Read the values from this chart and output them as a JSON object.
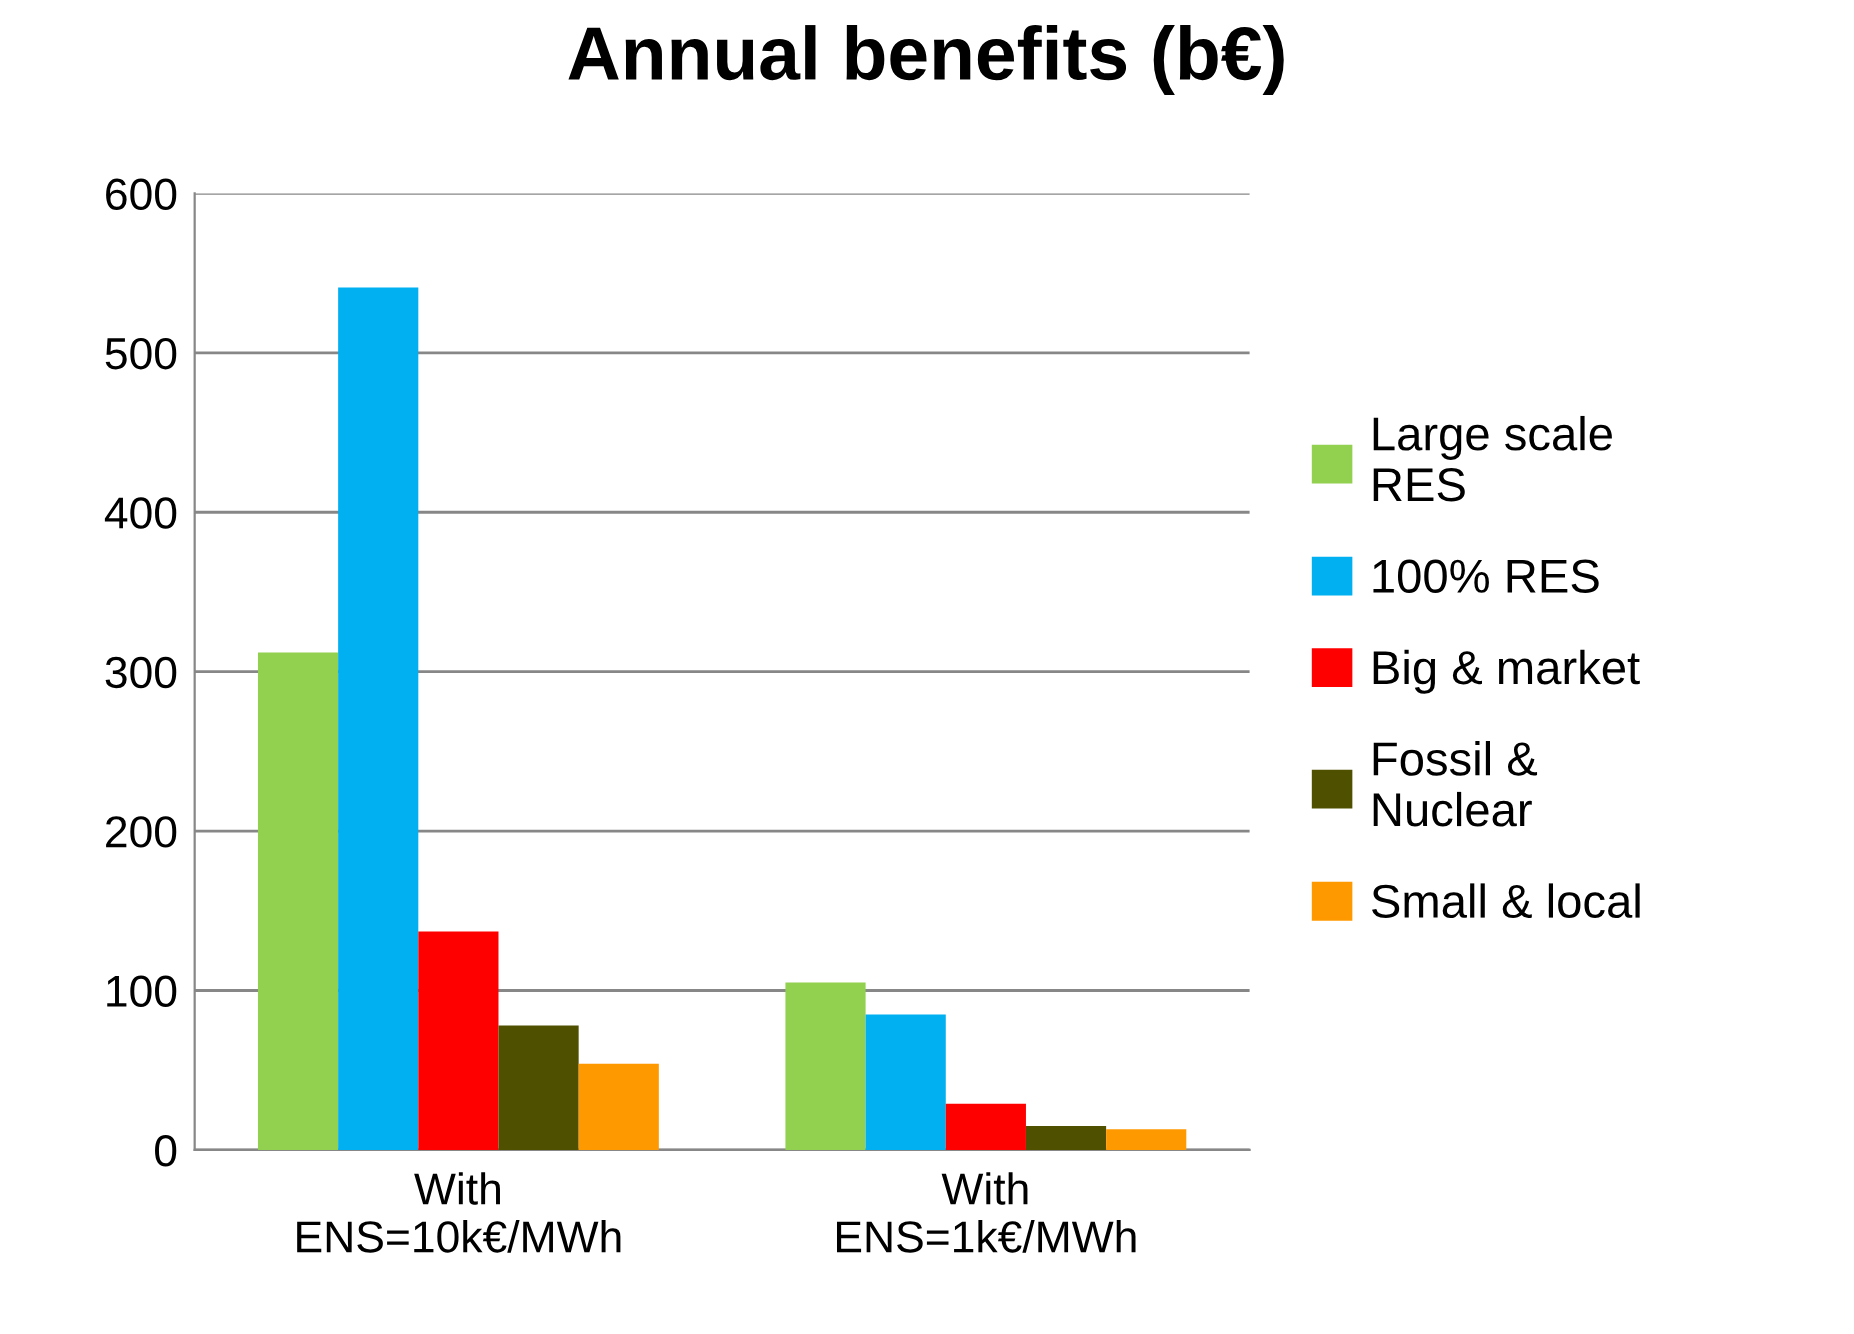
{
  "chart_data": {
    "type": "bar",
    "title": "Annual benefits (b€)",
    "categories": [
      "With\nENS=10k€/MWh",
      "With\nENS=1k€/MWh"
    ],
    "series": [
      {
        "name": "Large scale\nRES",
        "color": "#92d050",
        "values": [
          312,
          105
        ]
      },
      {
        "name": "100% RES",
        "color": "#00b0f0",
        "values": [
          541,
          85
        ]
      },
      {
        "name": "Big & market",
        "color": "#ff0000",
        "values": [
          137,
          29
        ]
      },
      {
        "name": "Fossil &\nNuclear",
        "color": "#4f5100",
        "values": [
          78,
          15
        ]
      },
      {
        "name": "Small & local",
        "color": "#ff9900",
        "values": [
          54,
          13
        ]
      }
    ],
    "ylim": [
      0,
      600
    ],
    "yticks": [
      0,
      100,
      200,
      300,
      400,
      500,
      600
    ],
    "grid": "y",
    "legend": "right"
  }
}
